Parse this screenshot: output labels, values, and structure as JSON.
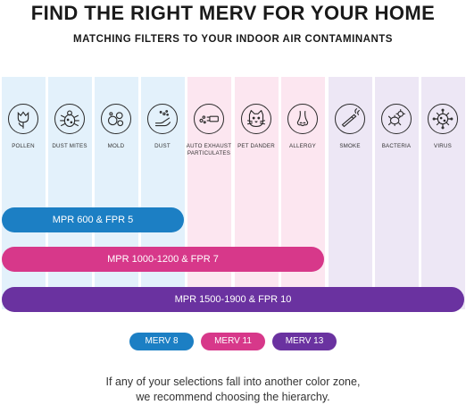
{
  "header": {
    "title": "FIND THE RIGHT MERV FOR YOUR HOME",
    "subtitle": "MATCHING FILTERS TO YOUR INDOOR AIR CONTAMINANTS"
  },
  "contaminants": [
    {
      "label": "POLLEN",
      "icon": "tulip-icon",
      "zone": "blue"
    },
    {
      "label": "DUST MITES",
      "icon": "mite-icon",
      "zone": "blue"
    },
    {
      "label": "MOLD",
      "icon": "mold-icon",
      "zone": "blue"
    },
    {
      "label": "DUST",
      "icon": "dust-hand-icon",
      "zone": "blue"
    },
    {
      "label": "AUTO EXHAUST PARTICULATES",
      "label_line1": "AUTO EXHAUST",
      "label_line2": "PARTICULATES",
      "icon": "exhaust-pipe-icon",
      "zone": "pink"
    },
    {
      "label": "PET DANDER",
      "icon": "cat-icon",
      "zone": "pink"
    },
    {
      "label": "ALLERGY",
      "icon": "nose-icon",
      "zone": "pink"
    },
    {
      "label": "SMOKE",
      "icon": "cigarette-icon",
      "zone": "purple"
    },
    {
      "label": "BACTERIA",
      "icon": "bacteria-icon",
      "zone": "purple"
    },
    {
      "label": "VIRUS",
      "icon": "virus-icon",
      "zone": "purple"
    }
  ],
  "filters": [
    {
      "label": "MPR 600 & FPR 5",
      "color": "#1c7fc4",
      "covers_count": 4
    },
    {
      "label": "MPR 1000-1200 & FPR 7",
      "color": "#d7388a",
      "covers_count": 7
    },
    {
      "label": "MPR 1500-1900 & FPR 10",
      "color": "#6a32a0",
      "covers_count": 10
    }
  ],
  "legend": [
    {
      "label": "MERV 8",
      "color": "#1c7fc4"
    },
    {
      "label": "MERV 11",
      "color": "#d7388a"
    },
    {
      "label": "MERV 13",
      "color": "#6a32a0"
    }
  ],
  "footnote": {
    "line1": "If any of your selections fall into another color zone,",
    "line2": "we recommend choosing the hierarchy."
  },
  "colors": {
    "zone_blue": "#e3f1fb",
    "zone_pink": "#fce6f0",
    "zone_purple": "#ede7f5"
  }
}
